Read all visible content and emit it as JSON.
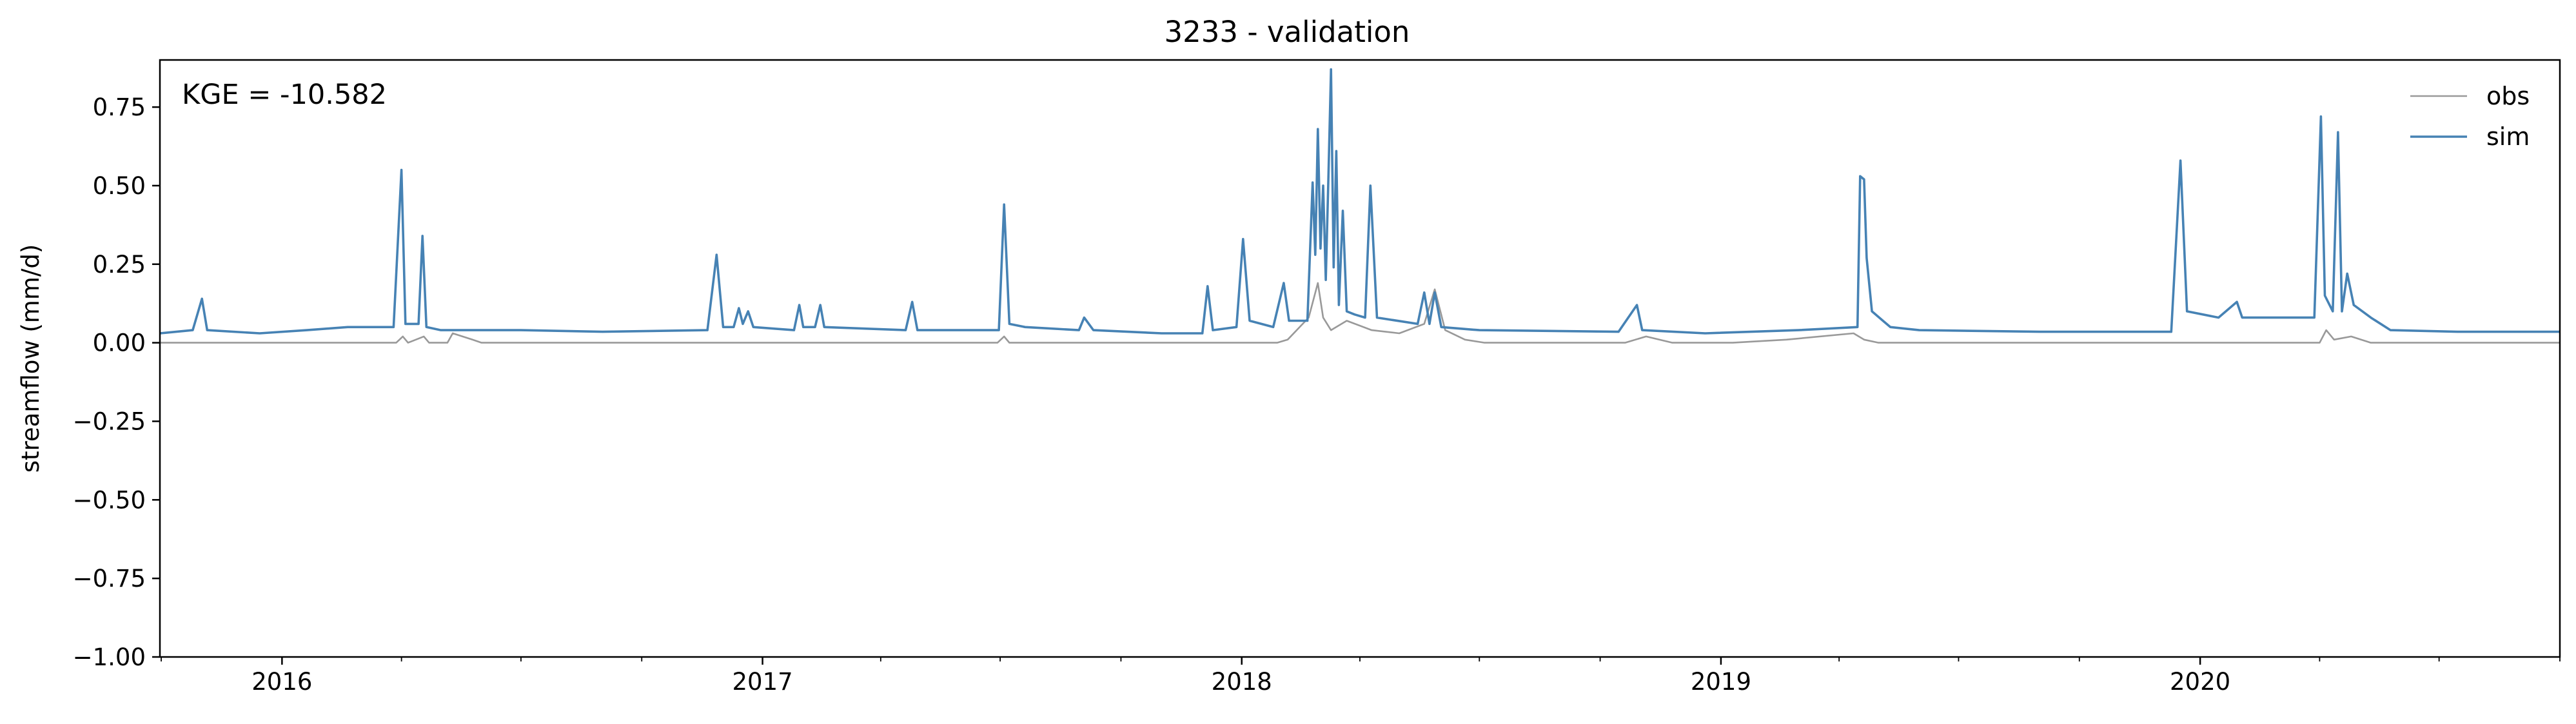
{
  "chart_data": {
    "type": "line",
    "title": "3233 - validation",
    "xlabel": "",
    "ylabel": "streamflow (mm/d)",
    "annotation": "KGE = -10.582",
    "xlim": [
      "2015-09-30",
      "2020-10-01"
    ],
    "ylim": [
      -1.0,
      0.9
    ],
    "yticks": [
      {
        "value": -1.0,
        "label": "−1.00"
      },
      {
        "value": -0.75,
        "label": "−0.75"
      },
      {
        "value": -0.5,
        "label": "−0.50"
      },
      {
        "value": -0.25,
        "label": "−0.25"
      },
      {
        "value": 0.0,
        "label": "0.00"
      },
      {
        "value": 0.25,
        "label": "0.25"
      },
      {
        "value": 0.5,
        "label": "0.50"
      },
      {
        "value": 0.75,
        "label": "0.75"
      }
    ],
    "xticks": [
      {
        "date": "2016-01-01",
        "label": "2016"
      },
      {
        "date": "2017-01-01",
        "label": "2017"
      },
      {
        "date": "2018-01-01",
        "label": "2018"
      },
      {
        "date": "2019-01-01",
        "label": "2019"
      },
      {
        "date": "2020-01-01",
        "label": "2020"
      }
    ],
    "grid": false,
    "legend_position": "top-right",
    "series": [
      {
        "name": "obs",
        "color": "#999999",
        "points": [
          [
            "2015-09-30",
            0.0
          ],
          [
            "2016-03-28",
            0.0
          ],
          [
            "2016-04-02",
            0.02
          ],
          [
            "2016-04-06",
            0.0
          ],
          [
            "2016-04-18",
            0.02
          ],
          [
            "2016-04-22",
            0.0
          ],
          [
            "2016-05-06",
            0.0
          ],
          [
            "2016-05-10",
            0.03
          ],
          [
            "2016-05-25",
            0.01
          ],
          [
            "2016-06-01",
            0.0
          ],
          [
            "2017-06-29",
            0.0
          ],
          [
            "2017-07-04",
            0.02
          ],
          [
            "2017-07-08",
            0.0
          ],
          [
            "2018-01-28",
            0.0
          ],
          [
            "2018-02-05",
            0.01
          ],
          [
            "2018-02-21",
            0.08
          ],
          [
            "2018-02-28",
            0.19
          ],
          [
            "2018-03-04",
            0.08
          ],
          [
            "2018-03-10",
            0.04
          ],
          [
            "2018-03-22",
            0.07
          ],
          [
            "2018-04-10",
            0.04
          ],
          [
            "2018-05-01",
            0.03
          ],
          [
            "2018-05-20",
            0.06
          ],
          [
            "2018-05-28",
            0.17
          ],
          [
            "2018-06-05",
            0.04
          ],
          [
            "2018-06-20",
            0.01
          ],
          [
            "2018-07-05",
            0.0
          ],
          [
            "2018-10-20",
            0.0
          ],
          [
            "2018-11-05",
            0.02
          ],
          [
            "2018-11-25",
            0.0
          ],
          [
            "2019-01-10",
            0.0
          ],
          [
            "2019-02-20",
            0.01
          ],
          [
            "2019-04-12",
            0.03
          ],
          [
            "2019-04-20",
            0.01
          ],
          [
            "2019-05-01",
            0.0
          ],
          [
            "2020-04-01",
            0.0
          ],
          [
            "2020-04-06",
            0.04
          ],
          [
            "2020-04-12",
            0.01
          ],
          [
            "2020-04-25",
            0.02
          ],
          [
            "2020-05-10",
            0.0
          ],
          [
            "2020-10-01",
            0.0
          ]
        ]
      },
      {
        "name": "sim",
        "color": "#4682b4",
        "points": [
          [
            "2015-09-30",
            0.03
          ],
          [
            "2015-10-25",
            0.04
          ],
          [
            "2015-11-01",
            0.14
          ],
          [
            "2015-11-05",
            0.04
          ],
          [
            "2015-12-15",
            0.03
          ],
          [
            "2016-01-20",
            0.04
          ],
          [
            "2016-02-20",
            0.05
          ],
          [
            "2016-03-26",
            0.05
          ],
          [
            "2016-04-01",
            0.55
          ],
          [
            "2016-04-04",
            0.06
          ],
          [
            "2016-04-14",
            0.06
          ],
          [
            "2016-04-17",
            0.34
          ],
          [
            "2016-04-20",
            0.05
          ],
          [
            "2016-05-01",
            0.04
          ],
          [
            "2016-07-01",
            0.04
          ],
          [
            "2016-09-01",
            0.035
          ],
          [
            "2016-11-20",
            0.04
          ],
          [
            "2016-11-27",
            0.28
          ],
          [
            "2016-12-02",
            0.05
          ],
          [
            "2016-12-10",
            0.05
          ],
          [
            "2016-12-14",
            0.11
          ],
          [
            "2016-12-17",
            0.06
          ],
          [
            "2016-12-21",
            0.1
          ],
          [
            "2016-12-25",
            0.05
          ],
          [
            "2017-01-25",
            0.04
          ],
          [
            "2017-01-29",
            0.12
          ],
          [
            "2017-02-01",
            0.05
          ],
          [
            "2017-02-10",
            0.05
          ],
          [
            "2017-02-14",
            0.12
          ],
          [
            "2017-02-17",
            0.05
          ],
          [
            "2017-04-20",
            0.04
          ],
          [
            "2017-04-25",
            0.13
          ],
          [
            "2017-04-29",
            0.04
          ],
          [
            "2017-06-30",
            0.04
          ],
          [
            "2017-07-04",
            0.44
          ],
          [
            "2017-07-08",
            0.06
          ],
          [
            "2017-07-20",
            0.05
          ],
          [
            "2017-08-30",
            0.04
          ],
          [
            "2017-09-03",
            0.08
          ],
          [
            "2017-09-10",
            0.04
          ],
          [
            "2017-11-01",
            0.03
          ],
          [
            "2017-12-02",
            0.03
          ],
          [
            "2017-12-06",
            0.18
          ],
          [
            "2017-12-10",
            0.04
          ],
          [
            "2017-12-28",
            0.05
          ],
          [
            "2018-01-02",
            0.33
          ],
          [
            "2018-01-07",
            0.07
          ],
          [
            "2018-01-25",
            0.05
          ],
          [
            "2018-02-02",
            0.19
          ],
          [
            "2018-02-06",
            0.07
          ],
          [
            "2018-02-20",
            0.07
          ],
          [
            "2018-02-24",
            0.51
          ],
          [
            "2018-02-26",
            0.28
          ],
          [
            "2018-02-28",
            0.68
          ],
          [
            "2018-03-02",
            0.3
          ],
          [
            "2018-03-04",
            0.5
          ],
          [
            "2018-03-06",
            0.2
          ],
          [
            "2018-03-08",
            0.52
          ],
          [
            "2018-03-10",
            0.87
          ],
          [
            "2018-03-12",
            0.24
          ],
          [
            "2018-03-14",
            0.61
          ],
          [
            "2018-03-16",
            0.12
          ],
          [
            "2018-03-19",
            0.42
          ],
          [
            "2018-03-22",
            0.1
          ],
          [
            "2018-03-28",
            0.09
          ],
          [
            "2018-04-05",
            0.08
          ],
          [
            "2018-04-09",
            0.5
          ],
          [
            "2018-04-14",
            0.08
          ],
          [
            "2018-05-15",
            0.06
          ],
          [
            "2018-05-20",
            0.16
          ],
          [
            "2018-05-24",
            0.06
          ],
          [
            "2018-05-28",
            0.16
          ],
          [
            "2018-06-02",
            0.05
          ],
          [
            "2018-07-01",
            0.04
          ],
          [
            "2018-10-15",
            0.035
          ],
          [
            "2018-10-29",
            0.12
          ],
          [
            "2018-11-02",
            0.04
          ],
          [
            "2018-12-20",
            0.03
          ],
          [
            "2019-03-01",
            0.04
          ],
          [
            "2019-04-15",
            0.05
          ],
          [
            "2019-04-17",
            0.53
          ],
          [
            "2019-04-20",
            0.52
          ],
          [
            "2019-04-22",
            0.27
          ],
          [
            "2019-04-26",
            0.1
          ],
          [
            "2019-05-10",
            0.05
          ],
          [
            "2019-06-01",
            0.04
          ],
          [
            "2019-09-01",
            0.035
          ],
          [
            "2019-12-10",
            0.035
          ],
          [
            "2019-12-17",
            0.58
          ],
          [
            "2019-12-22",
            0.1
          ],
          [
            "2020-01-15",
            0.08
          ],
          [
            "2020-01-29",
            0.13
          ],
          [
            "2020-02-02",
            0.08
          ],
          [
            "2020-03-28",
            0.08
          ],
          [
            "2020-04-02",
            0.72
          ],
          [
            "2020-04-05",
            0.15
          ],
          [
            "2020-04-11",
            0.1
          ],
          [
            "2020-04-15",
            0.67
          ],
          [
            "2020-04-18",
            0.1
          ],
          [
            "2020-04-22",
            0.22
          ],
          [
            "2020-04-27",
            0.12
          ],
          [
            "2020-05-10",
            0.08
          ],
          [
            "2020-05-25",
            0.04
          ],
          [
            "2020-07-15",
            0.035
          ],
          [
            "2020-10-01",
            0.035
          ]
        ]
      }
    ]
  }
}
